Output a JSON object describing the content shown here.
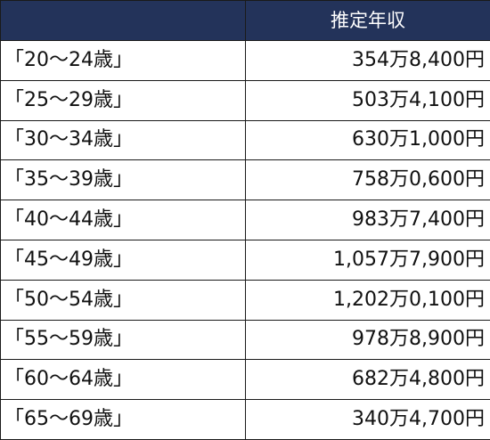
{
  "table": {
    "headers": [
      "",
      "推定年収"
    ],
    "rows": [
      {
        "age": "「20～24歳」",
        "income": "354万8,400円"
      },
      {
        "age": "「25～29歳」",
        "income": "503万4,100円"
      },
      {
        "age": "「30～34歳」",
        "income": "630万1,000円"
      },
      {
        "age": "「35～39歳」",
        "income": "758万0,600円"
      },
      {
        "age": "「40～44歳」",
        "income": "983万7,400円"
      },
      {
        "age": "「45～49歳」",
        "income": "1,057万7,900円"
      },
      {
        "age": "「50～54歳」",
        "income": "1,202万0,100円"
      },
      {
        "age": "「55～59歳」",
        "income": "978万8,900円"
      },
      {
        "age": "「60～64歳」",
        "income": "682万4,800円"
      },
      {
        "age": "「65～69歳」",
        "income": "340万4,700円"
      }
    ]
  }
}
